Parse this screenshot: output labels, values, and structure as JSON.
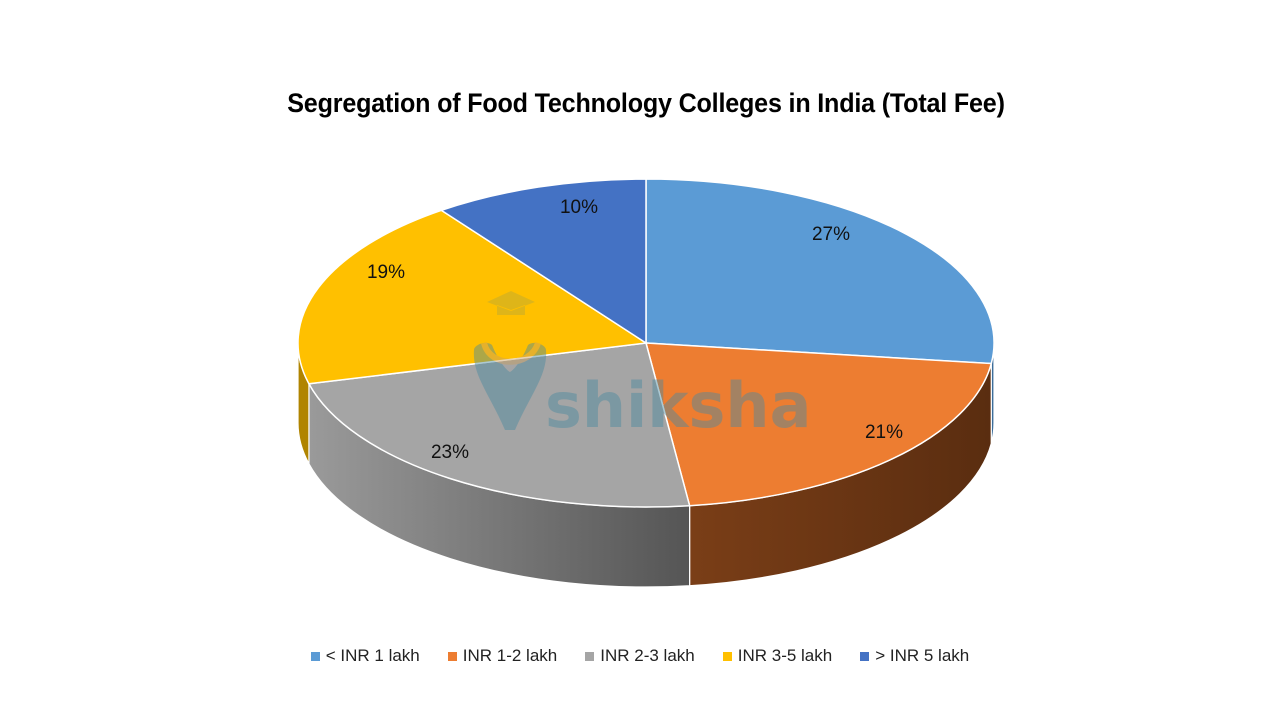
{
  "chart_data": {
    "type": "pie",
    "style": "3d",
    "title": "Segregation of Food Technology Colleges in India (Total Fee)",
    "categories": [
      "< INR 1 lakh",
      "INR 1-2 lakh",
      "INR 2-3 lakh",
      "INR 3-5 lakh",
      "> INR 5 lakh"
    ],
    "values": [
      27,
      21,
      23,
      19,
      10
    ],
    "labels": [
      "27%",
      "21%",
      "23%",
      "19%",
      "10%"
    ],
    "unit": "%",
    "colors": [
      "#5B9BD5",
      "#ED7D31",
      "#A5A5A5",
      "#FFC000",
      "#4472C4"
    ],
    "legend_position": "bottom",
    "start_angle": "12 o'clock, clockwise"
  },
  "title": "Segregation of Food Technology Colleges in India (Total Fee)",
  "legend": [
    {
      "label": "< INR 1 lakh",
      "color": "#5B9BD5"
    },
    {
      "label": "INR 1-2 lakh",
      "color": "#ED7D31"
    },
    {
      "label": "INR 2-3 lakh",
      "color": "#A5A5A5"
    },
    {
      "label": "INR 3-5 lakh",
      "color": "#FFC000"
    },
    {
      "label": "> INR 5 lakh",
      "color": "#4472C4"
    }
  ],
  "watermark": {
    "text": "shiksha"
  }
}
